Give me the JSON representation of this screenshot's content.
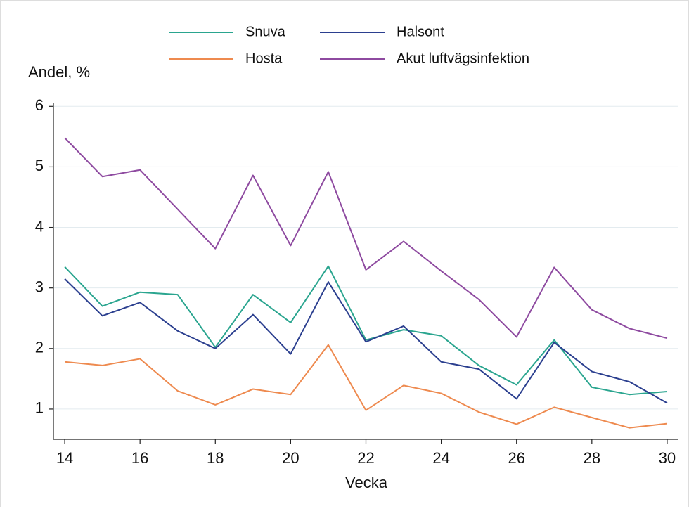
{
  "chart_data": {
    "type": "line",
    "y_label": "Andel, %",
    "x_label": "Vecka",
    "x": [
      14,
      15,
      16,
      17,
      18,
      19,
      20,
      21,
      22,
      23,
      24,
      25,
      26,
      27,
      28,
      29,
      30
    ],
    "series": [
      {
        "name": "Snuva",
        "color": "#2aa58f",
        "values": [
          3.35,
          2.7,
          2.93,
          2.89,
          2.02,
          2.89,
          2.43,
          3.36,
          2.14,
          2.31,
          2.21,
          1.72,
          1.4,
          2.14,
          1.36,
          1.24,
          1.29
        ]
      },
      {
        "name": "Halsont",
        "color": "#2b3f8f",
        "values": [
          3.15,
          2.54,
          2.76,
          2.29,
          2.0,
          2.56,
          1.91,
          3.1,
          2.11,
          2.37,
          1.78,
          1.66,
          1.17,
          2.1,
          1.62,
          1.45,
          1.1
        ]
      },
      {
        "name": "Hosta",
        "color": "#ee8a4f",
        "values": [
          1.78,
          1.72,
          1.83,
          1.3,
          1.07,
          1.33,
          1.24,
          2.06,
          0.98,
          1.39,
          1.26,
          0.95,
          0.75,
          1.03,
          0.86,
          0.69,
          0.76
        ]
      },
      {
        "name": "Akut luftvägsinfektion",
        "color": "#8e4aa0",
        "values": [
          5.48,
          4.84,
          4.95,
          4.3,
          3.65,
          4.86,
          3.7,
          4.92,
          3.3,
          3.77,
          3.28,
          2.81,
          2.19,
          3.34,
          2.64,
          2.33,
          2.17
        ]
      }
    ],
    "xlim": [
      13.7,
      30.3
    ],
    "xticks": [
      14,
      16,
      18,
      20,
      22,
      24,
      26,
      28,
      30
    ],
    "ylim": [
      0.5,
      6.05
    ],
    "yticks": [
      1,
      2,
      3,
      4,
      5,
      6
    ],
    "grid": true
  }
}
